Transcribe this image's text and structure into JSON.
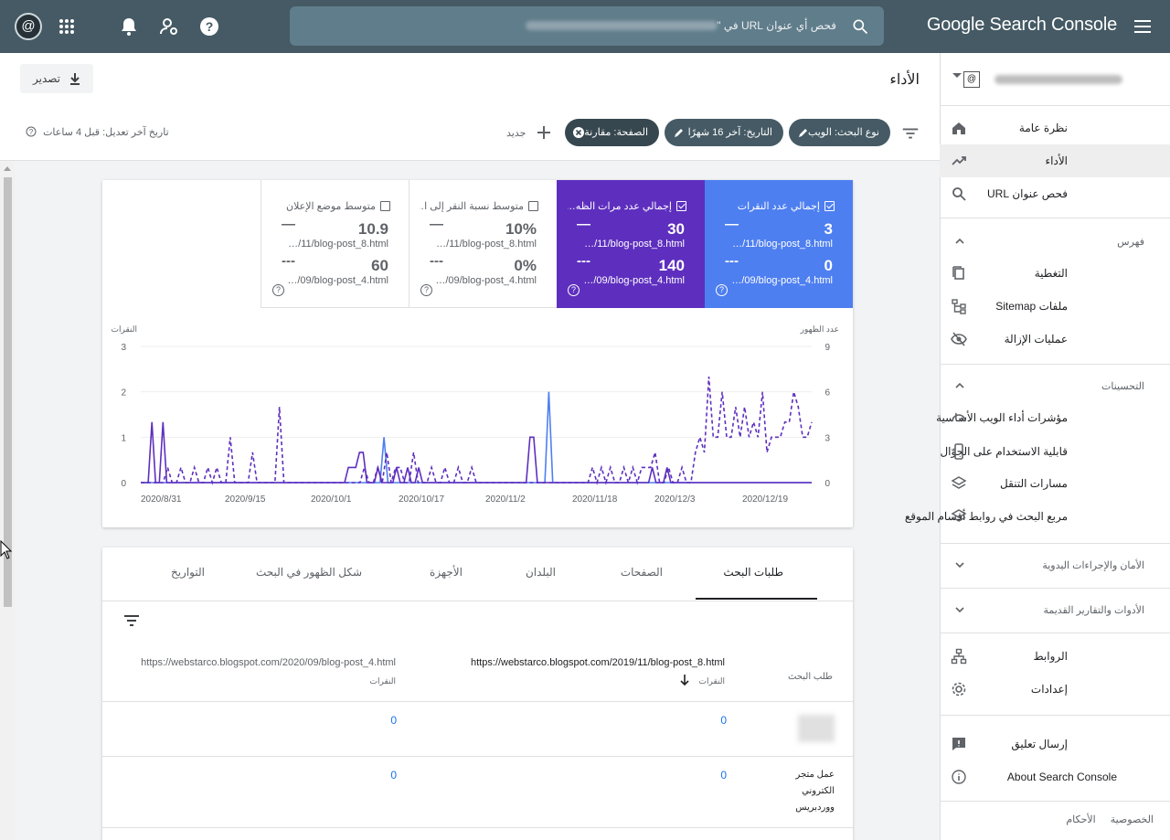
{
  "app": {
    "brand": "Google Search Console",
    "search_placeholder": "فحص أي عنوان URL في \"",
    "avatar_letter": "@"
  },
  "header": {
    "title": "الأداء",
    "export_label": "تصدير"
  },
  "filters": {
    "chips": [
      "نوع البحث: الويب",
      "التاريخ: آخر 16 شهرًا",
      "الصفحة: مقارنة"
    ],
    "new_label": "جديد",
    "last_updated": "تاريخ آخر تعديل: قبل 4 ساعات"
  },
  "metrics": [
    {
      "label": "إجمالي عدد النقرات",
      "checked": true,
      "value1": "3",
      "sub1": "…/11/blog-post_8.html",
      "value2": "0",
      "sub2": "…/09/blog-post_4.html",
      "dash1": "—",
      "dash2": "---",
      "bg": "#4e7ff0",
      "fg": "#ffffff"
    },
    {
      "label": "إجمالي عدد مرات الظه…",
      "checked": true,
      "value1": "30",
      "sub1": "…/11/blog-post_8.html",
      "value2": "140",
      "sub2": "…/09/blog-post_4.html",
      "dash1": "—",
      "dash2": "---",
      "bg": "#5e2fbe",
      "fg": "#ffffff"
    },
    {
      "label": "متوسط نسبة النقر إلى ا…",
      "checked": false,
      "value1": "10%",
      "sub1": "…/11/blog-post_8.html",
      "value2": "0%",
      "sub2": "…/09/blog-post_4.html",
      "dash1": "—",
      "dash2": "---",
      "bg": "#ffffff",
      "fg": "#5f6368"
    },
    {
      "label": "متوسط موضع الإعلان",
      "checked": false,
      "value1": "10.9",
      "sub1": "…/11/blog-post_8.html",
      "value2": "60",
      "sub2": "…/09/blog-post_4.html",
      "dash1": "—",
      "dash2": "---",
      "bg": "#ffffff",
      "fg": "#5f6368"
    }
  ],
  "chart_data": {
    "type": "line",
    "left_axis_label": "النقرات",
    "right_axis_label": "عدد الظهور",
    "ylim_left": [
      0,
      3
    ],
    "ylim_right": [
      0,
      9
    ],
    "left_ticks": [
      "3",
      "2",
      "1",
      "0"
    ],
    "right_ticks": [
      "9",
      "6",
      "3",
      "0"
    ],
    "x_ticks": [
      "2020/8/31",
      "2020/9/15",
      "2020/10/1",
      "2020/10/17",
      "2020/11/2",
      "2020/11/18",
      "2020/12/3",
      "2020/12/19"
    ],
    "series": [
      {
        "name": "إجمالي عدد النقرات",
        "color": "#4e7ff0",
        "dashed": false,
        "values": [
          0,
          0,
          0,
          0,
          0,
          0,
          0,
          0,
          0,
          0,
          0,
          0,
          0,
          0,
          0,
          0,
          0,
          0,
          0,
          0,
          0,
          0,
          0,
          0,
          0,
          0,
          0,
          0,
          0,
          0,
          0,
          0,
          0,
          0,
          0,
          0,
          0,
          0,
          0,
          0,
          0,
          0,
          0,
          0,
          0,
          0,
          0,
          0,
          0,
          0,
          0,
          0,
          0,
          0,
          0,
          0,
          0,
          0,
          0,
          0,
          0,
          0,
          1,
          0,
          0,
          0,
          0,
          0,
          0,
          0,
          0,
          0,
          0,
          0,
          0,
          0,
          0,
          0,
          0,
          0,
          0,
          0,
          0,
          0,
          0,
          0,
          0,
          0,
          0,
          0,
          0,
          0,
          0,
          0,
          0,
          0,
          0,
          0,
          0,
          0,
          0,
          0,
          0,
          0,
          2,
          0,
          0,
          0,
          0,
          0,
          0,
          0,
          0,
          0,
          0,
          0,
          0,
          0,
          0,
          0,
          0,
          0,
          0,
          0,
          0,
          0,
          0,
          0,
          0,
          0,
          0,
          0,
          0,
          0,
          0,
          0,
          0,
          0,
          0,
          0,
          0,
          0,
          0,
          0,
          0,
          0,
          0,
          0,
          0,
          0,
          0,
          0,
          0,
          0,
          0,
          0,
          0,
          0,
          0,
          0,
          0,
          0,
          0,
          0,
          0,
          0,
          0,
          0,
          0,
          0,
          0,
          0
        ]
      },
      {
        "name": "إجمالي عدد مرات الظهور",
        "color": "#5e2fbe",
        "dashed": false,
        "values": [
          0,
          0,
          0,
          4,
          0,
          0,
          4,
          0,
          0,
          0,
          0,
          0,
          0,
          0,
          0,
          0,
          0,
          0,
          0,
          0,
          0,
          0,
          0,
          0,
          0,
          0,
          0,
          0,
          0,
          0,
          0,
          0,
          0,
          0,
          0,
          0,
          0,
          0,
          0,
          0,
          0,
          0,
          0,
          0,
          0,
          0,
          0,
          0,
          0,
          0,
          0,
          0,
          0,
          0,
          0,
          0,
          1,
          1,
          1,
          2,
          2,
          0,
          0,
          0,
          1,
          0,
          0,
          0,
          0,
          1,
          0,
          0,
          1,
          0,
          0,
          1,
          0,
          0,
          0,
          0,
          0,
          0,
          0,
          0,
          0,
          0,
          0,
          0,
          0,
          0,
          0,
          0,
          0,
          0,
          0,
          0,
          0,
          0,
          0,
          0,
          0,
          0,
          0,
          0,
          0,
          3,
          3,
          0,
          0,
          0,
          0,
          0,
          0,
          0,
          0,
          0,
          0,
          0,
          0,
          0,
          0,
          0,
          0,
          0,
          0,
          0,
          0,
          0,
          0,
          0,
          0,
          0,
          0,
          0,
          0,
          0,
          0,
          0,
          1,
          0,
          0,
          0,
          1,
          0,
          0,
          0,
          0,
          0,
          0,
          0,
          0,
          0,
          0,
          0,
          0,
          0,
          0,
          0,
          0,
          0,
          0,
          0,
          0,
          0,
          0,
          0,
          0,
          0,
          0,
          0,
          0,
          0,
          0,
          0,
          0,
          0,
          0,
          0,
          0,
          0,
          0,
          0
        ]
      },
      {
        "name": "blog-post_4 عدد مرات الظهور",
        "color": "#5e2fbe",
        "dashed": true,
        "values": [
          0,
          0,
          0,
          0,
          0,
          0,
          1,
          0,
          0,
          1,
          0,
          0,
          1,
          0,
          0,
          1,
          0,
          1,
          0,
          0,
          3,
          0,
          0,
          0,
          0,
          2,
          0,
          0,
          0,
          0,
          0,
          5,
          0,
          0,
          0,
          0,
          0,
          0,
          0,
          0,
          0,
          0,
          0,
          0,
          0,
          0,
          0,
          0,
          0,
          0,
          1,
          0,
          0,
          1,
          0,
          2,
          0,
          1,
          1,
          0,
          0,
          2,
          0,
          0,
          0,
          1,
          0,
          0,
          1,
          0,
          0,
          1,
          0,
          0,
          1,
          0,
          0,
          0,
          0,
          0,
          0,
          0,
          0,
          0,
          0,
          0,
          0,
          0,
          0,
          0,
          0,
          0,
          0,
          0,
          0,
          0,
          0,
          0,
          0,
          0,
          0,
          1,
          0,
          1,
          0,
          1,
          0,
          0,
          1,
          0,
          1,
          0,
          1,
          1,
          1,
          2,
          0,
          0,
          1,
          0,
          0,
          1,
          0,
          0,
          2,
          3,
          2,
          7,
          3,
          3,
          6,
          3,
          3,
          5,
          3,
          5,
          3,
          4,
          3,
          6,
          2,
          3,
          3,
          3,
          4,
          4,
          6,
          5,
          3,
          3,
          4
        ]
      }
    ]
  },
  "tabs": [
    "طلبات البحث",
    "الصفحات",
    "البلدان",
    "الأجهزة",
    "شكل الظهور في البحث",
    "التواريخ"
  ],
  "table": {
    "col1": "طلب البحث",
    "col2_url": "https://webstarco.blogspot.com/2019/11/blog-post_8.html",
    "col2_sub": "النقرات",
    "col3_url": "https://webstarco.blogspot.com/2020/09/blog-post_4.html",
    "col3_sub": "النقرات",
    "rows": [
      {
        "query": "",
        "c2": "0",
        "c3": "0"
      },
      {
        "query": "عمل متجر الكتروني ووردبريس",
        "c2": "0",
        "c3": "0"
      }
    ]
  },
  "sidebar": {
    "items": [
      {
        "label": "نظرة عامة",
        "icon": "home-icon"
      },
      {
        "label": "الأداء",
        "icon": "trending-up-icon"
      },
      {
        "label": "فحص عنوان URL",
        "icon": "search-icon"
      }
    ],
    "index_title": "فهرس",
    "index_items": [
      {
        "label": "التغطية",
        "icon": "copy-icon"
      },
      {
        "label": "ملفات Sitemap",
        "icon": "sitemap-icon"
      },
      {
        "label": "عمليات الإزالة",
        "icon": "eye-off-icon"
      }
    ],
    "enh_title": "التحسينات",
    "enh_items": [
      {
        "label": "مؤشرات أداء الويب الأساسية",
        "icon": "speed-icon"
      },
      {
        "label": "قابلية الاستخدام على الجوّال",
        "icon": "phone-icon"
      },
      {
        "label": "مسارات التنقل",
        "icon": "layers-icon"
      },
      {
        "label": "مربع البحث في روابط أقسام الموقع",
        "icon": "layers-icon"
      }
    ],
    "security_title": "الأمان والإجراءات اليدوية",
    "legacy_title": "الأدوات والتقارير القديمة",
    "bottom_items": [
      {
        "label": "الروابط",
        "icon": "links-icon"
      },
      {
        "label": "إعدادات",
        "icon": "gear-icon"
      }
    ],
    "feedback": "إرسال تعليق",
    "about": "About Search Console",
    "footer_privacy": "الخصوصية",
    "footer_terms": "الأحكام"
  }
}
